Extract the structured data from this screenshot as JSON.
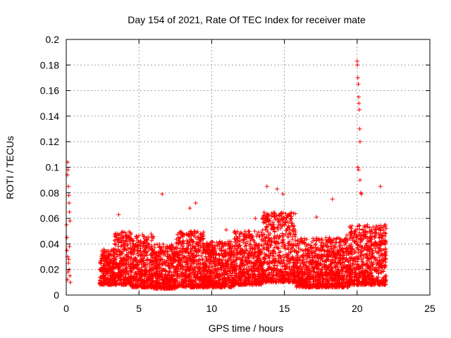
{
  "chart_data": {
    "type": "scatter",
    "title": "Day 154 of 2021, Rate Of TEC Index for receiver mate",
    "xlabel": "GPS time / hours",
    "ylabel": "ROTI / TECUs",
    "xlim": [
      0,
      25
    ],
    "ylim": [
      0,
      0.2
    ],
    "xticks": [
      0,
      5,
      10,
      15,
      20,
      25
    ],
    "xtick_labels": [
      "0",
      "5",
      "10",
      "15",
      "20",
      "25"
    ],
    "yticks": [
      0,
      0.02,
      0.04,
      0.06,
      0.08,
      0.1,
      0.12,
      0.14,
      0.16,
      0.18,
      0.2
    ],
    "ytick_labels": [
      "0",
      "0.02",
      "0.04",
      "0.06",
      "0.08",
      "0.1",
      "0.12",
      "0.14",
      "0.16",
      "0.18",
      "0.2"
    ],
    "grid": true,
    "marker": "+",
    "color": "#ff0000",
    "series": [
      {
        "name": "ROTI",
        "points": [
          [
            0.02,
            0.055
          ],
          [
            0.05,
            0.045
          ],
          [
            0.08,
            0.094
          ],
          [
            0.1,
            0.104
          ],
          [
            0.12,
            0.098
          ],
          [
            0.15,
            0.085
          ],
          [
            0.18,
            0.078
          ],
          [
            0.2,
            0.072
          ],
          [
            0.22,
            0.065
          ],
          [
            0.25,
            0.058
          ],
          [
            0.05,
            0.035
          ],
          [
            0.1,
            0.03
          ],
          [
            0.15,
            0.025
          ],
          [
            0.2,
            0.02
          ],
          [
            0.25,
            0.015
          ],
          [
            0.08,
            0.012
          ],
          [
            0.12,
            0.018
          ],
          [
            0.18,
            0.028
          ],
          [
            0.22,
            0.038
          ],
          [
            0.28,
            0.01
          ],
          [
            3.6,
            0.063
          ],
          [
            6.6,
            0.079
          ],
          [
            8.5,
            0.068
          ],
          [
            8.9,
            0.072
          ],
          [
            11.0,
            0.051
          ],
          [
            13.0,
            0.06
          ],
          [
            13.8,
            0.085
          ],
          [
            14.5,
            0.083
          ],
          [
            14.9,
            0.079
          ],
          [
            17.2,
            0.061
          ],
          [
            18.3,
            0.075
          ],
          [
            19.3,
            0.047
          ],
          [
            20.0,
            0.183
          ],
          [
            20.02,
            0.18
          ],
          [
            20.05,
            0.17
          ],
          [
            20.08,
            0.165
          ],
          [
            20.1,
            0.155
          ],
          [
            20.12,
            0.15
          ],
          [
            20.15,
            0.145
          ],
          [
            20.18,
            0.13
          ],
          [
            20.2,
            0.12
          ],
          [
            20.05,
            0.1
          ],
          [
            20.1,
            0.098
          ],
          [
            20.2,
            0.09
          ],
          [
            20.25,
            0.08
          ],
          [
            20.3,
            0.079
          ],
          [
            21.6,
            0.085
          ],
          [
            22.0,
            0.052
          ]
        ],
        "dense_ranges": [
          {
            "x_start": 2.3,
            "x_end": 3.3,
            "y_low": 0.008,
            "y_high": 0.036
          },
          {
            "x_start": 3.3,
            "x_end": 4.5,
            "y_low": 0.008,
            "y_high": 0.05
          },
          {
            "x_start": 4.5,
            "x_end": 6.0,
            "y_low": 0.006,
            "y_high": 0.048
          },
          {
            "x_start": 6.0,
            "x_end": 7.5,
            "y_low": 0.005,
            "y_high": 0.04
          },
          {
            "x_start": 7.5,
            "x_end": 9.5,
            "y_low": 0.006,
            "y_high": 0.05
          },
          {
            "x_start": 9.5,
            "x_end": 11.5,
            "y_low": 0.006,
            "y_high": 0.042
          },
          {
            "x_start": 11.5,
            "x_end": 13.5,
            "y_low": 0.008,
            "y_high": 0.05
          },
          {
            "x_start": 13.5,
            "x_end": 15.8,
            "y_low": 0.01,
            "y_high": 0.065
          },
          {
            "x_start": 15.8,
            "x_end": 17.5,
            "y_low": 0.006,
            "y_high": 0.045
          },
          {
            "x_start": 17.5,
            "x_end": 19.5,
            "y_low": 0.006,
            "y_high": 0.045
          },
          {
            "x_start": 19.5,
            "x_end": 22.0,
            "y_low": 0.008,
            "y_high": 0.055
          }
        ]
      }
    ]
  }
}
